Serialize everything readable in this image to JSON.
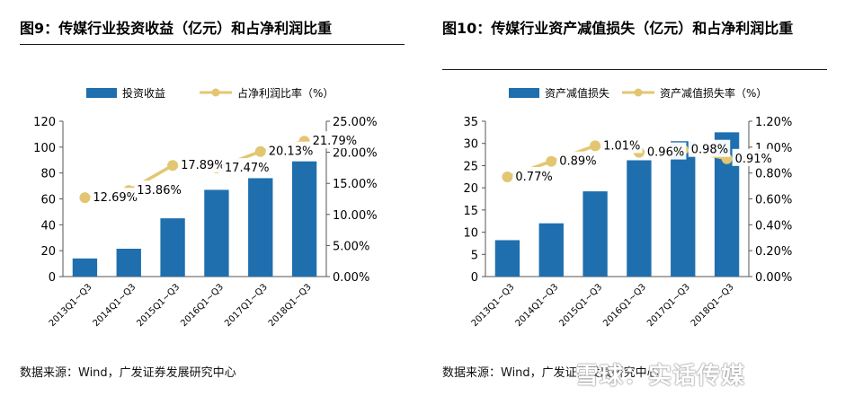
{
  "colors": {
    "bar": "#1f6fae",
    "line": "#e3c672",
    "axis": "#555555"
  },
  "watermark": "雪球：实话传媒",
  "charts": [
    {
      "id": "left",
      "figure_title": "图9：传媒行业投资收益（亿元）和占净利润比重",
      "source": "数据来源：Wind，广发证券发展研究中心"
    },
    {
      "id": "right",
      "figure_title": "图10：传媒行业资产减值损失（亿元）和占净利润比重",
      "source": "数据来源：Wind，广发证券发展研究中心"
    }
  ],
  "chart_data": [
    {
      "type": "bar",
      "title": "图9：传媒行业投资收益（亿元）和占净利润比重",
      "categories": [
        "2013Q1~Q3",
        "2014Q1~Q3",
        "2015Q1~Q3",
        "2016Q1~Q3",
        "2017Q1~Q3",
        "2018Q1~Q3"
      ],
      "series": [
        {
          "name": "投资收益",
          "type": "bar",
          "axis": "left",
          "values": [
            14,
            21.5,
            45,
            67,
            76,
            89
          ]
        },
        {
          "name": "占净利润比率（%）",
          "type": "line",
          "axis": "right",
          "values": [
            12.69,
            13.86,
            17.89,
            17.47,
            20.13,
            21.79
          ],
          "labels": [
            "12.69%",
            "13.86%",
            "17.89%",
            "17.47%",
            "20.13%",
            "21.79%"
          ]
        }
      ],
      "y_left": {
        "min": 0,
        "max": 120,
        "ticks": [
          "0",
          "20",
          "40",
          "60",
          "80",
          "100",
          "120"
        ]
      },
      "y_right": {
        "min": 0,
        "max": 25,
        "ticks": [
          "0.00%",
          "5.00%",
          "10.00%",
          "15.00%",
          "20.00%",
          "25.00%"
        ]
      },
      "legend": "top",
      "grid": false
    },
    {
      "type": "bar",
      "title": "图10：传媒行业资产减值损失（亿元）和占净利润比重",
      "categories": [
        "2013Q1~Q3",
        "2014Q1~Q3",
        "2015Q1~Q3",
        "2016Q1~Q3",
        "2017Q1~Q3",
        "2018Q1~Q3"
      ],
      "series": [
        {
          "name": "资产减值损失",
          "type": "bar",
          "axis": "left",
          "values": [
            8.2,
            12,
            19.2,
            26.2,
            30.5,
            32.5
          ]
        },
        {
          "name": "资产减值损失率（%）",
          "type": "line",
          "axis": "right",
          "values": [
            0.77,
            0.89,
            1.01,
            0.96,
            0.98,
            0.91
          ],
          "labels": [
            "0.77%",
            "0.89%",
            "1.01%",
            "0.96%",
            "0.98%",
            "0.91%"
          ]
        }
      ],
      "y_left": {
        "min": 0,
        "max": 35,
        "ticks": [
          "0",
          "5",
          "10",
          "15",
          "20",
          "25",
          "30",
          "35"
        ]
      },
      "y_right": {
        "min": 0,
        "max": 1.2,
        "ticks": [
          "0.00%",
          "0.20%",
          "0.40%",
          "0.60%",
          "0.80%",
          "1.00%",
          "1.20%"
        ]
      },
      "legend": "top",
      "grid": false
    }
  ]
}
